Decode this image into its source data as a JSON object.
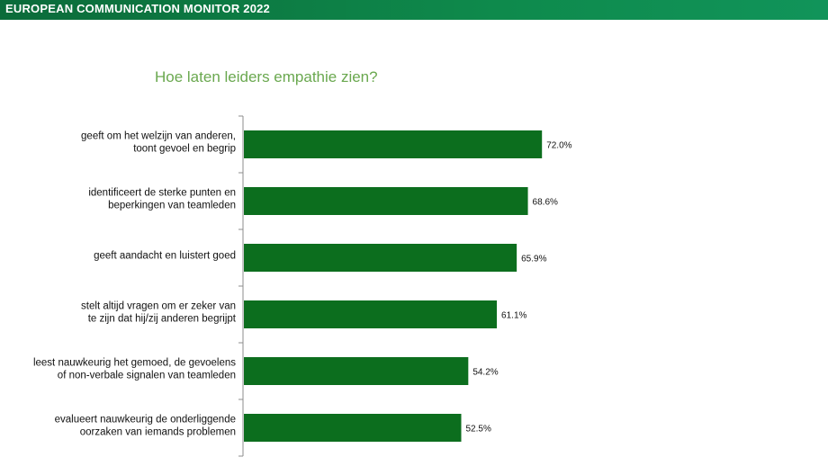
{
  "header": {
    "banner_text": "EUROPEAN COMMUNICATION MONITOR 2022"
  },
  "colors": {
    "banner": "#0e8a4c",
    "bar": "#0c6e1e",
    "title": "#6aa84f"
  },
  "chart_data": {
    "type": "bar",
    "orientation": "horizontal",
    "title": "Hoe laten leiders empathie zien?",
    "xlabel": "",
    "ylabel": "",
    "xlim": [
      0,
      100
    ],
    "grid": false,
    "categories": [
      [
        "geeft om het welzijn van anderen,",
        "toont gevoel en begrip"
      ],
      [
        "identificeert de sterke punten en",
        "beperkingen van teamleden"
      ],
      [
        "geeft aandacht en luistert goed"
      ],
      [
        "stelt altijd vragen om er zeker van",
        "te zijn dat hij/zij anderen begrijpt"
      ],
      [
        "leest nauwkeurig het gemoed, de gevoelens",
        "of non-verbale signalen van teamleden"
      ],
      [
        "evalueert nauwkeurig de onderliggende",
        "oorzaken van iemands problemen"
      ]
    ],
    "values": [
      72.0,
      68.6,
      65.9,
      61.1,
      54.2,
      52.5
    ],
    "value_labels": [
      "72.0%",
      "68.6%",
      "65.9%",
      "61.1%",
      "54.2%",
      "52.5%"
    ]
  }
}
